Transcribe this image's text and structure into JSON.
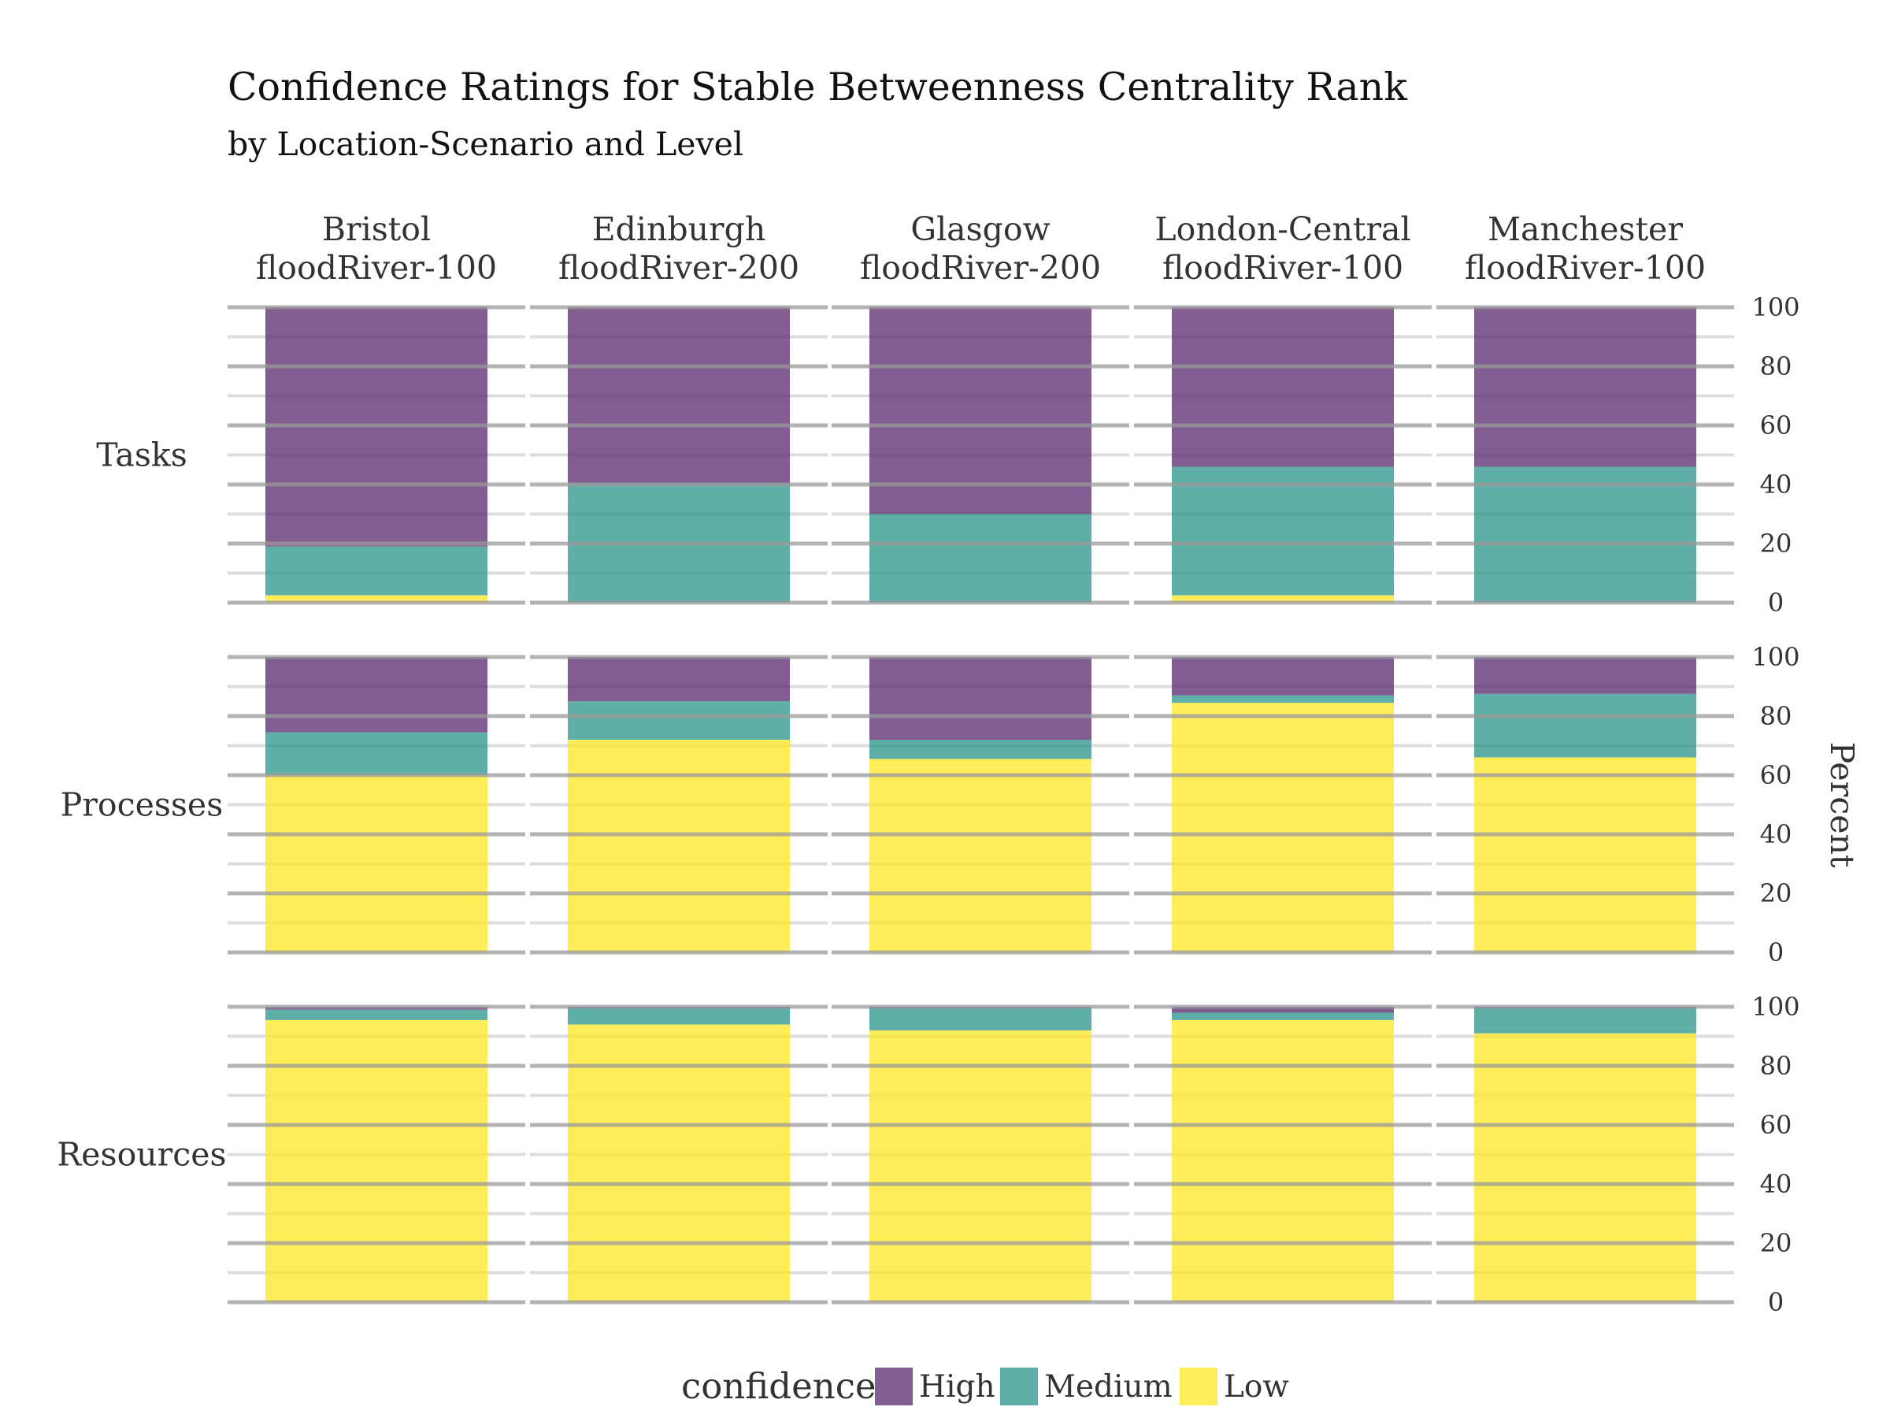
{
  "chart_data": {
    "type": "bar",
    "subtype": "stacked-percent-faceted",
    "title": "Confidence Ratings for Stable Betweenness Centrality Rank",
    "subtitle": "by Location-Scenario and Level",
    "ylabel": "Percent",
    "ylim": [
      0,
      100
    ],
    "yticks": [
      0,
      20,
      40,
      60,
      80,
      100
    ],
    "y_axis_position": "right",
    "grid": true,
    "legend": {
      "title": "confidence",
      "position": "bottom",
      "entries": [
        "High",
        "Medium",
        "Low"
      ]
    },
    "colors": {
      "High": "#5b2a6e",
      "Medium": "#2d968e",
      "Low": "#fde725"
    },
    "columns": [
      {
        "line1": "Bristol",
        "line2": "floodRiver-100"
      },
      {
        "line1": "Edinburgh",
        "line2": "floodRiver-200"
      },
      {
        "line1": "Glasgow",
        "line2": "floodRiver-200"
      },
      {
        "line1": "London-Central",
        "line2": "floodRiver-100"
      },
      {
        "line1": "Manchester",
        "line2": "floodRiver-100"
      }
    ],
    "rows": [
      "Tasks",
      "Processes",
      "Resources"
    ],
    "series_order_bottom_to_top": [
      "Low",
      "Medium",
      "High"
    ],
    "data": {
      "Tasks": [
        {
          "Low": 2.5,
          "Medium": 16.5,
          "High": 81.0
        },
        {
          "Low": 0.0,
          "Medium": 40.5,
          "High": 59.5
        },
        {
          "Low": 0.0,
          "Medium": 30.0,
          "High": 70.0
        },
        {
          "Low": 2.5,
          "Medium": 43.5,
          "High": 54.0
        },
        {
          "Low": 0.0,
          "Medium": 46.0,
          "High": 54.0
        }
      ],
      "Processes": [
        {
          "Low": 60.0,
          "Medium": 14.5,
          "High": 25.5
        },
        {
          "Low": 72.0,
          "Medium": 13.0,
          "High": 15.0
        },
        {
          "Low": 65.5,
          "Medium": 6.5,
          "High": 28.0
        },
        {
          "Low": 84.5,
          "Medium": 2.5,
          "High": 13.0
        },
        {
          "Low": 66.0,
          "Medium": 21.5,
          "High": 12.5
        }
      ],
      "Resources": [
        {
          "Low": 95.5,
          "Medium": 3.5,
          "High": 1.0
        },
        {
          "Low": 94.0,
          "Medium": 5.5,
          "High": 0.5
        },
        {
          "Low": 92.0,
          "Medium": 7.5,
          "High": 0.5
        },
        {
          "Low": 95.5,
          "Medium": 2.5,
          "High": 2.0
        },
        {
          "Low": 91.0,
          "Medium": 8.5,
          "High": 0.5
        }
      ]
    }
  }
}
